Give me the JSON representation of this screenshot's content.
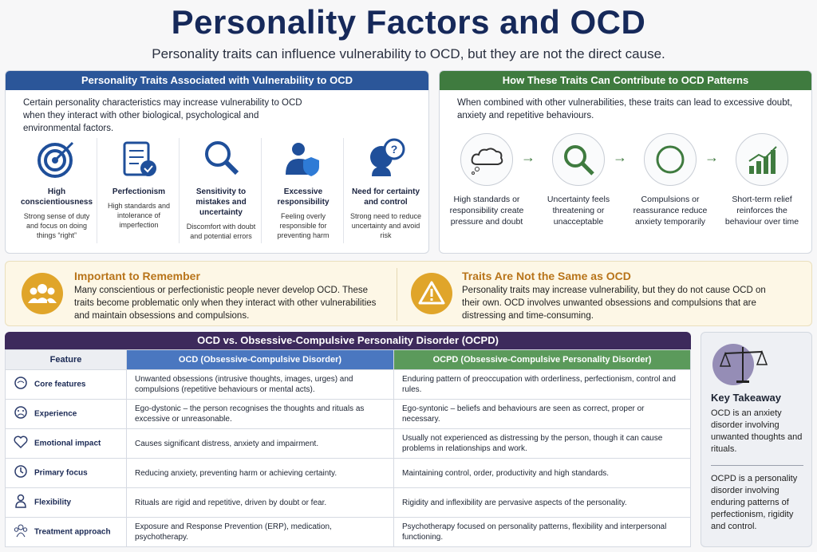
{
  "header": {
    "title": "Personality Factors and OCD",
    "subtitle": "Personality traits can influence vulnerability to OCD, but they are not the direct cause."
  },
  "traits_panel": {
    "title": "Personality Traits Associated with Vulnerability to OCD",
    "intro": "Certain personality characteristics may increase vulnerability to OCD when they interact with other biological, psychological and environmental factors.",
    "items": [
      {
        "name": "High conscientiousness",
        "desc": "Strong sense of duty and focus on doing things “right”"
      },
      {
        "name": "Perfectionism",
        "desc": "High standards and intolerance of imperfection"
      },
      {
        "name": "Sensitivity to mistakes and uncertainty",
        "desc": "Discomfort with doubt and potential errors"
      },
      {
        "name": "Excessive responsibility",
        "desc": "Feeling overly responsible for preventing harm"
      },
      {
        "name": "Need for certainty and control",
        "desc": "Strong need to reduce uncertainty and avoid risk"
      }
    ]
  },
  "patterns_panel": {
    "title": "How These Traits Can Contribute to OCD Patterns",
    "intro": "When combined with other vulnerabilities, these traits can lead to excessive doubt, anxiety and repetitive behaviours.",
    "steps": [
      "High standards or responsibility create pressure and doubt",
      "Uncertainty feels threatening or unacceptable",
      "Compulsions or reassurance reduce anxiety temporarily",
      "Short-term relief reinforces the behaviour over time"
    ]
  },
  "remember": {
    "title": "Important to Remember",
    "text": "Many conscientious or perfectionistic people never develop OCD. These traits become problematic only when they interact with other vulnerabilities and maintain obsessions and compulsions."
  },
  "not_same": {
    "title": "Traits Are Not the Same as OCD",
    "text": "Personality traits may increase vulnerability, but they do not cause OCD on their own. OCD involves unwanted obsessions and compulsions that are distressing and time-consuming."
  },
  "table": {
    "title": "OCD vs. Obsessive-Compulsive Personality Disorder (OCPD)",
    "columns": [
      "Feature",
      "OCD (Obsessive-Compulsive Disorder)",
      "OCPD (Obsessive-Compulsive Personality Disorder)"
    ],
    "rows": [
      [
        "Core features",
        "Unwanted obsessions (intrusive thoughts, images, urges) and compulsions (repetitive behaviours or mental acts).",
        "Enduring pattern of preoccupation with orderliness, perfectionism, control and rules."
      ],
      [
        "Experience",
        "Ego-dystonic – the person recognises the thoughts and rituals as excessive or unreasonable.",
        "Ego-syntonic – beliefs and behaviours are seen as correct, proper or necessary."
      ],
      [
        "Emotional impact",
        "Causes significant distress, anxiety and impairment.",
        "Usually not experienced as distressing by the person, though it can cause problems in relationships and work."
      ],
      [
        "Primary focus",
        "Reducing anxiety, preventing harm or achieving certainty.",
        "Maintaining control, order, productivity and high standards."
      ],
      [
        "Flexibility",
        "Rituals are rigid and repetitive, driven by doubt or fear.",
        "Rigidity and inflexibility are pervasive aspects of the personality."
      ],
      [
        "Treatment approach",
        "Exposure and Response Prevention (ERP), medication, psychotherapy.",
        "Psychotherapy focused on personality patterns, flexibility and interpersonal functioning."
      ]
    ]
  },
  "takeaway": {
    "title": "Key Takeaway",
    "points": [
      "OCD is an anxiety disorder involving unwanted thoughts and rituals.",
      "OCPD is a personality disorder involving enduring patterns of perfectionism, rigidity and control."
    ]
  }
}
